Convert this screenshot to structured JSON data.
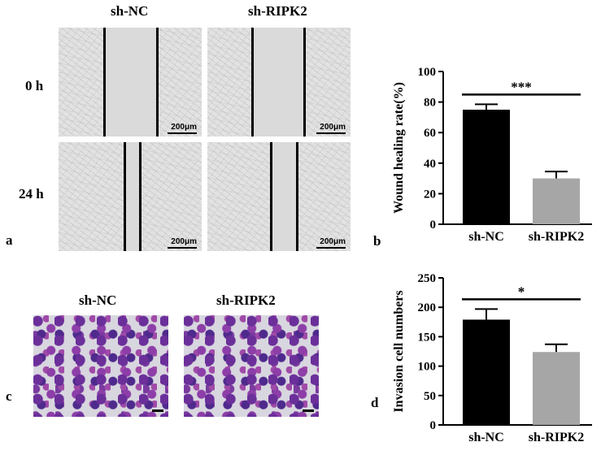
{
  "panel_a": {
    "letter": "a",
    "col_labels": [
      "sh-NC",
      "sh-RIPK2"
    ],
    "row_labels": [
      "0 h",
      "24 h"
    ],
    "scale_label": "200μm"
  },
  "panel_c": {
    "letter": "c",
    "col_labels": [
      "sh-NC",
      "sh-RIPK2"
    ]
  },
  "panel_b_letter": "b",
  "panel_d_letter": "d",
  "chart_data": [
    {
      "type": "bar",
      "categories": [
        "sh-NC",
        "sh-RIPK2"
      ],
      "values": [
        75,
        30
      ],
      "errors": [
        3.5,
        4.5
      ],
      "colors": [
        "#000000",
        "#a6a6a6"
      ],
      "ylabel": "Wound healing rate(%)",
      "ylim": [
        0,
        100
      ],
      "yticks": [
        "0",
        "20",
        "40",
        "60",
        "80",
        "100"
      ],
      "significance": "***"
    },
    {
      "type": "bar",
      "categories": [
        "sh-NC",
        "sh-RIPK2"
      ],
      "values": [
        179,
        124
      ],
      "errors": [
        18,
        13
      ],
      "colors": [
        "#000000",
        "#a6a6a6"
      ],
      "ylabel": "Invasion cell numbers",
      "ylim": [
        0,
        250
      ],
      "yticks": [
        "0",
        "50",
        "100",
        "150",
        "200",
        "250"
      ],
      "significance": "*"
    }
  ]
}
